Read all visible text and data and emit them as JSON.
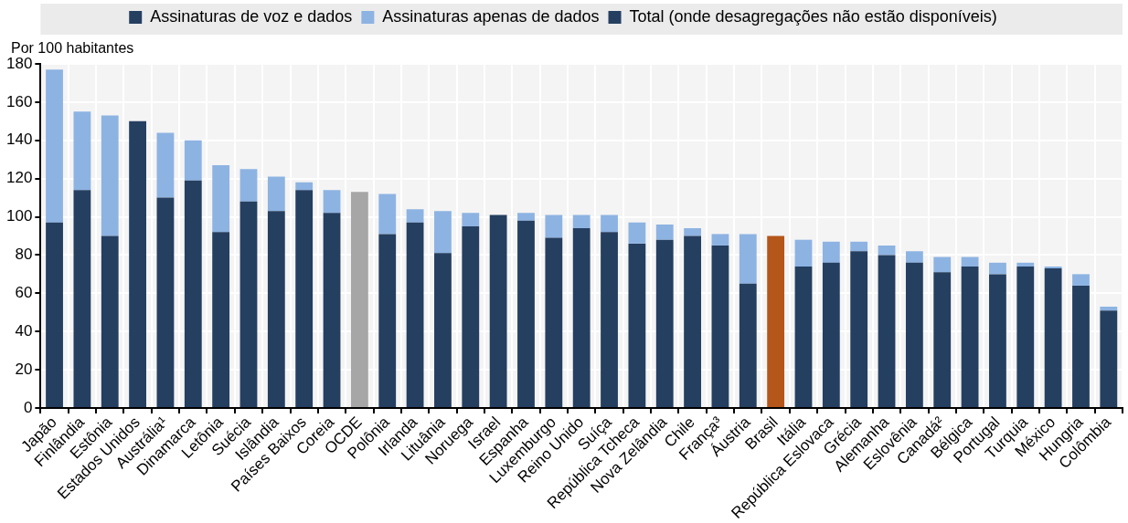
{
  "chart_data": {
    "type": "bar",
    "stacked": true,
    "ylabel": "Por 100 habitantes",
    "categories": [
      "Japão",
      "Finlândia",
      "Estônia",
      "Estados Unidos",
      "Austrália¹",
      "Dinamarca",
      "Letônia",
      "Suécia",
      "Islândia",
      "Países Baixos",
      "Coreia",
      "OCDE",
      "Polônia",
      "Irlanda",
      "Lituânia",
      "Noruega",
      "Israel",
      "Espanha",
      "Luxemburgo",
      "Reino Unido",
      "Suíça",
      "República Tcheca",
      "Nova Zelândia",
      "Chile",
      "França³",
      "Áustria",
      "Brasil",
      "Itália",
      "República Eslovaca",
      "Grécia",
      "Alemanha",
      "Eslovênia",
      "Canadá²",
      "Bélgica",
      "Portugal",
      "Turquia",
      "México",
      "Hungria",
      "Colômbia"
    ],
    "series": [
      {
        "name": "Assinaturas de voz e dados",
        "color": "#253f61",
        "values": [
          97,
          114,
          90,
          null,
          110,
          119,
          92,
          108,
          103,
          114,
          102,
          null,
          91,
          97,
          81,
          95,
          null,
          98,
          89,
          94,
          92,
          86,
          88,
          90,
          85,
          65,
          null,
          74,
          76,
          82,
          80,
          76,
          71,
          74,
          70,
          74,
          73,
          64,
          51
        ]
      },
      {
        "name": "Assinaturas apenas de dados",
        "color": "#8db3e2",
        "values": [
          80,
          41,
          63,
          null,
          34,
          21,
          35,
          17,
          18,
          4,
          12,
          null,
          21,
          7,
          22,
          7,
          null,
          4,
          12,
          7,
          9,
          11,
          8,
          4,
          6,
          26,
          null,
          14,
          11,
          5,
          5,
          6,
          8,
          5,
          6,
          2,
          1,
          6,
          2
        ]
      },
      {
        "name": "Total (onde desagregações não estão disponíveis)",
        "color": "#253f61",
        "colors": [
          null,
          null,
          null,
          "#253f61",
          null,
          null,
          null,
          null,
          null,
          null,
          null,
          "#a6a6a6",
          null,
          null,
          null,
          null,
          "#253f61",
          null,
          null,
          null,
          null,
          null,
          null,
          null,
          null,
          null,
          "#b5561b",
          null,
          null,
          null,
          null,
          null,
          null,
          null,
          null,
          null,
          null,
          null,
          null
        ],
        "values": [
          null,
          null,
          null,
          150,
          null,
          null,
          null,
          null,
          null,
          null,
          null,
          113,
          null,
          null,
          null,
          null,
          101,
          null,
          null,
          null,
          null,
          null,
          null,
          null,
          null,
          null,
          90,
          null,
          null,
          null,
          null,
          null,
          null,
          null,
          null,
          null,
          null,
          null,
          null
        ]
      }
    ],
    "ylim": [
      0,
      180
    ],
    "yticks": [
      0,
      20,
      40,
      60,
      80,
      100,
      120,
      140,
      160,
      180
    ],
    "grid": true,
    "legend": "top"
  }
}
